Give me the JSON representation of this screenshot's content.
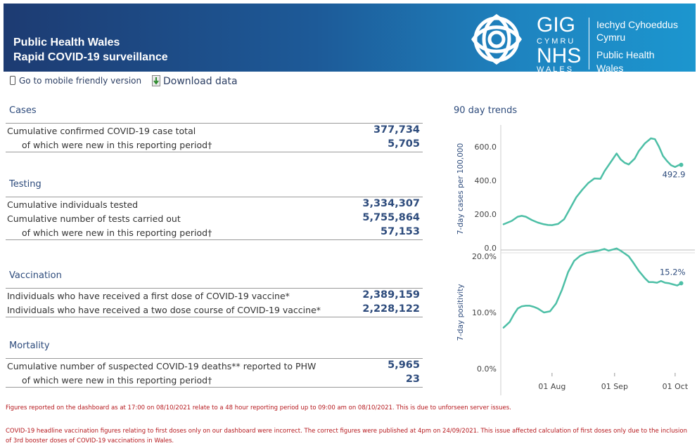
{
  "header": {
    "title_line1": "Public Health Wales",
    "title_line2": "Rapid COVID-19 surveillance",
    "logo": {
      "gig": "GIG",
      "cymru": "CYMRU",
      "nhs": "NHS",
      "wales": "WALES",
      "welsh_line1": "Iechyd Cyhoeddus",
      "welsh_line2": "Cymru",
      "english_line1": "Public Health",
      "english_line2": "Wales"
    }
  },
  "links": {
    "mobile": "Go to mobile friendly version",
    "download": "Download data"
  },
  "cases": {
    "title": "Cases",
    "rows": [
      {
        "label": "Cumulative confirmed COVID-19 case total",
        "value": "377,734"
      },
      {
        "label": "of which were new in this reporting period†",
        "value": "5,705"
      }
    ]
  },
  "testing": {
    "title": "Testing",
    "rows": [
      {
        "label": "Cumulative individuals tested",
        "value": "3,334,307"
      },
      {
        "label": "Cumulative number of tests carried out",
        "value": "5,755,864"
      },
      {
        "label": "of which were new in this reporting period†",
        "value": "57,153"
      }
    ]
  },
  "vaccination": {
    "title": "Vaccination",
    "rows": [
      {
        "label": "Individuals who have received a first dose of COVID-19 vaccine*",
        "value": "2,389,159"
      },
      {
        "label": "Individuals who have received a two dose course of COVID-19 vaccine*",
        "value": "2,228,122"
      }
    ]
  },
  "mortality": {
    "title": "Mortality",
    "rows": [
      {
        "label": "Cumulative number of suspected COVID-19 deaths** reported to PHW",
        "value": "5,965"
      },
      {
        "label": "of which were new in this reporting period†",
        "value": "23"
      }
    ]
  },
  "trends": {
    "title": "90 day trends"
  },
  "chart_data": [
    {
      "type": "line",
      "title": "",
      "ylabel": "7-day cases per 100,000",
      "ylim": [
        0,
        700
      ],
      "yticks": [
        0,
        200,
        400,
        600
      ],
      "ytick_labels": [
        "0.0",
        "200.0",
        "400.0",
        "600.0"
      ],
      "xlim": [
        0,
        92
      ],
      "xticks": [
        24,
        55,
        85
      ],
      "xtick_labels": [
        "01 Aug",
        "01 Sep",
        "01 Oct"
      ],
      "grid": false,
      "color": "#4dbfa6",
      "end_label": "492.9",
      "series": [
        {
          "name": "7-day cases per 100,000",
          "x": [
            0,
            4,
            7,
            9,
            11,
            14,
            17,
            20,
            22,
            24,
            27,
            30,
            33,
            36,
            39,
            42,
            45,
            48,
            50,
            52,
            54,
            56,
            58,
            60,
            62,
            65,
            67,
            70,
            73,
            75,
            77,
            79,
            81,
            83,
            85,
            87,
            88
          ],
          "y": [
            140,
            160,
            185,
            190,
            185,
            165,
            150,
            140,
            136,
            135,
            142,
            170,
            235,
            300,
            345,
            385,
            412,
            410,
            455,
            490,
            525,
            560,
            525,
            505,
            495,
            530,
            575,
            620,
            650,
            645,
            600,
            545,
            515,
            490,
            480,
            492,
            492.9
          ]
        }
      ]
    },
    {
      "type": "line",
      "title": "",
      "ylabel": "7-day positivity",
      "ylim": [
        0,
        20
      ],
      "yticks": [
        0,
        10,
        20
      ],
      "ytick_labels": [
        "0.0%",
        "10.0%",
        "20.0%"
      ],
      "xlim": [
        0,
        92
      ],
      "xticks": [
        24,
        55,
        85
      ],
      "xtick_labels": [
        "01 Aug",
        "01 Sep",
        "01 Oct"
      ],
      "grid": false,
      "color": "#4dbfa6",
      "end_label": "15.2%",
      "series": [
        {
          "name": "7-day positivity",
          "x": [
            0,
            3,
            5,
            7,
            9,
            11,
            13,
            15,
            17,
            20,
            23,
            26,
            29,
            32,
            35,
            38,
            41,
            44,
            47,
            50,
            52,
            54,
            56,
            58,
            60,
            62,
            64,
            67,
            70,
            72,
            74,
            76,
            78,
            80,
            82,
            84,
            86,
            88
          ],
          "y": [
            7.3,
            8.3,
            9.6,
            10.7,
            11.1,
            11.2,
            11.2,
            11.0,
            10.7,
            10.0,
            10.2,
            11.6,
            14.1,
            17.2,
            19.2,
            20.1,
            20.6,
            20.8,
            21.0,
            21.3,
            21.0,
            21.2,
            21.4,
            21.0,
            20.5,
            20.0,
            19.0,
            17.4,
            16.1,
            15.4,
            15.4,
            15.3,
            15.6,
            15.3,
            15.2,
            15.0,
            14.8,
            15.2
          ]
        }
      ]
    }
  ],
  "notes": {
    "note1": "Figures reported on the dashboard as at 17:00 on 08/10/2021 relate to a 48 hour reporting period up to 09:00 am on 08/10/2021. This is due to unforseen server issues.",
    "note2": "COVID-19 headline vaccination figures relating to first doses only on our dashboard were incorrect. The correct figures were published at 4pm on 24/09/2021.  This issue affected calculation of first doses only due to the inclusion of 3rd booster doses of COVID-19 vaccinations in Wales."
  },
  "colors": {
    "header_dark": "#1d3b72",
    "header_light": "#1c96cf",
    "accent": "#2d4b7c",
    "line": "#4dbfa6",
    "note": "#b5161b"
  }
}
